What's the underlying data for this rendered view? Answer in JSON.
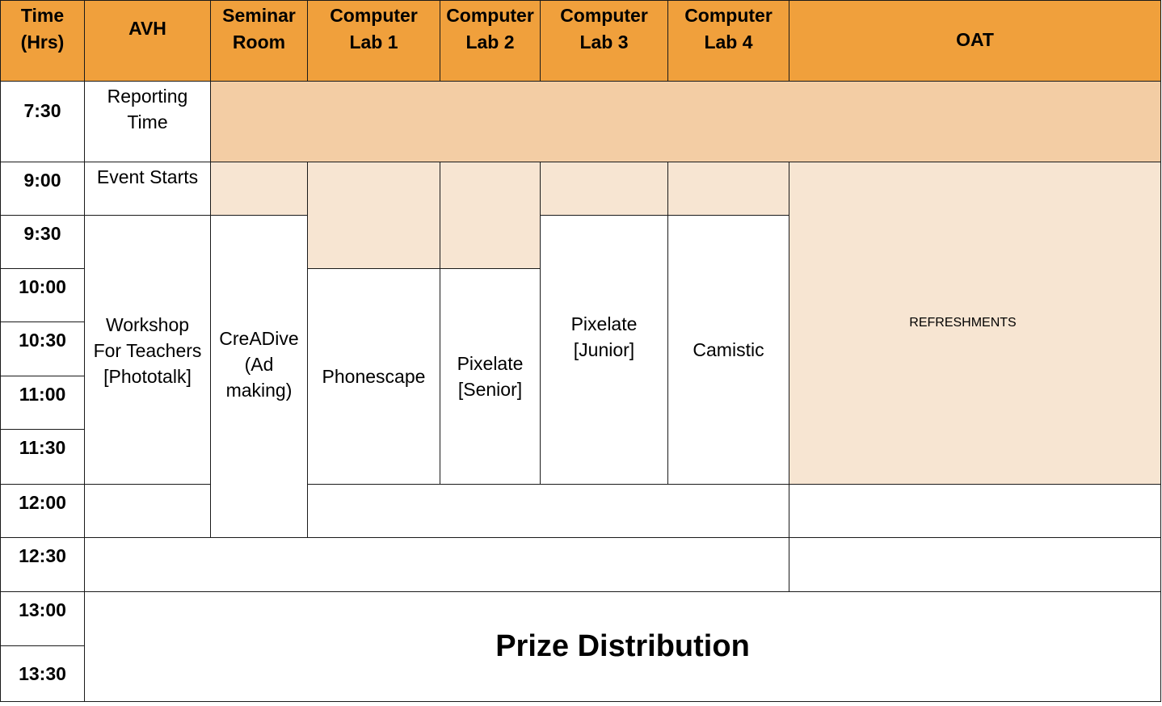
{
  "headers": {
    "time": "Time\n(Hrs)",
    "avh": "AVH",
    "seminar": "Seminar\nRoom",
    "lab1": "Computer\nLab 1",
    "lab2": "Computer\nLab 2",
    "lab3": "Computer\nLab 3",
    "lab4": "Computer\nLab 4",
    "oat": "OAT"
  },
  "times": [
    "7:30",
    "9:00",
    "9:30",
    "10:00",
    "10:30",
    "11:00",
    "11:30",
    "12:00",
    "12:30",
    "13:00",
    "13:30"
  ],
  "events": {
    "reporting": "Reporting\nTime",
    "event_starts": "Event Starts",
    "workshop": "Workshop\nFor Teachers\n[Phototalk]",
    "creadive": "CreADive\n(Ad\nmaking)",
    "phonescape": "Phonescape",
    "pixelate_senior": "Pixelate\n[Senior]",
    "pixelate_junior": "Pixelate\n[Junior]",
    "camistic": "Camistic",
    "refreshments": "REFRESHMENTS",
    "prize": "Prize Distribution"
  },
  "colors": {
    "header": "#f0a03c",
    "reserved_dark": "#f3cda4",
    "reserved_light": "#f7e5d2",
    "border": "#1a1a1a"
  }
}
